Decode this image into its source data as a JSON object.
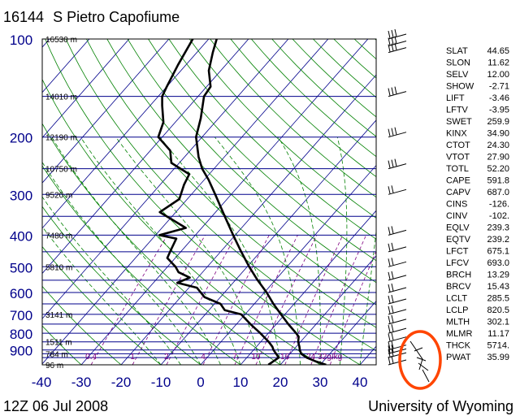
{
  "header": {
    "station": "16144",
    "station_name": "S Pietro Capofiume",
    "time": "12Z 06 Jul 2008",
    "source": "University of Wyoming"
  },
  "colors": {
    "pressure_lines": "#00008b",
    "height_labels": "#000000",
    "isotherms": "#00008b",
    "dry_adiabats": "#008000",
    "moist_adiabats": "#008000",
    "mixing_ratio": "#800080",
    "profile": "#000000",
    "highlight_circle": "#ff4500",
    "pressure_tick_labels": "#00008b",
    "temp_tick_labels": "#00008b"
  },
  "chart_data": {
    "type": "skew-t",
    "title": "16144 S Pietro Capofiume",
    "pressure_levels": [
      100,
      200,
      300,
      400,
      500,
      600,
      700,
      800,
      900
    ],
    "pressure_range": [
      100,
      1000
    ],
    "height_labels": [
      {
        "p": 100,
        "label": "16530 m"
      },
      {
        "p": 150,
        "label": "14010 m"
      },
      {
        "p": 200,
        "label": "12190 m"
      },
      {
        "p": 250,
        "label": "10750 m"
      },
      {
        "p": 300,
        "label": "9520 m"
      },
      {
        "p": 400,
        "label": "7480 m"
      },
      {
        "p": 500,
        "label": "5810 m"
      },
      {
        "p": 700,
        "label": "3141 m"
      },
      {
        "p": 850,
        "label": "1511 m"
      },
      {
        "p": 925,
        "label": "784 m"
      },
      {
        "p": 1000,
        "label": "96 m"
      }
    ],
    "temperature_ticks": [
      -40,
      -30,
      -20,
      -10,
      0,
      10,
      20,
      30,
      40
    ],
    "mixing_ratio_labels": [
      "0.4",
      "1",
      "2",
      "4",
      "7",
      "10",
      "16",
      "24",
      "32g/kg"
    ],
    "temperature_profile": [
      {
        "p": 1000,
        "t": 31.5
      },
      {
        "p": 975,
        "t": 28.0
      },
      {
        "p": 950,
        "t": 25.0
      },
      {
        "p": 925,
        "t": 22.8
      },
      {
        "p": 900,
        "t": 21.6
      },
      {
        "p": 880,
        "t": 20.8
      },
      {
        "p": 850,
        "t": 19.4
      },
      {
        "p": 820,
        "t": 18.4
      },
      {
        "p": 800,
        "t": 17.0
      },
      {
        "p": 750,
        "t": 13.0
      },
      {
        "p": 700,
        "t": 9.0
      },
      {
        "p": 650,
        "t": 4.8
      },
      {
        "p": 600,
        "t": 0.6
      },
      {
        "p": 550,
        "t": -4.4
      },
      {
        "p": 500,
        "t": -9.5
      },
      {
        "p": 450,
        "t": -14.8
      },
      {
        "p": 400,
        "t": -20.5
      },
      {
        "p": 350,
        "t": -26.8
      },
      {
        "p": 300,
        "t": -34.0
      },
      {
        "p": 270,
        "t": -39.0
      },
      {
        "p": 250,
        "t": -43.0
      },
      {
        "p": 230,
        "t": -46.5
      },
      {
        "p": 200,
        "t": -51.5
      },
      {
        "p": 175,
        "t": -54.5
      },
      {
        "p": 150,
        "t": -58.5
      },
      {
        "p": 140,
        "t": -59.0
      },
      {
        "p": 125,
        "t": -63.0
      },
      {
        "p": 110,
        "t": -66.0
      },
      {
        "p": 100,
        "t": -68.0
      }
    ],
    "dewpoint_profile": [
      {
        "p": 1000,
        "t": 17.0
      },
      {
        "p": 975,
        "t": 17.5
      },
      {
        "p": 950,
        "t": 18.0
      },
      {
        "p": 925,
        "t": 16.5
      },
      {
        "p": 900,
        "t": 15.0
      },
      {
        "p": 880,
        "t": 14.0
      },
      {
        "p": 850,
        "t": 12.0
      },
      {
        "p": 800,
        "t": 8.0
      },
      {
        "p": 750,
        "t": 3.5
      },
      {
        "p": 700,
        "t": -1.0
      },
      {
        "p": 680,
        "t": -6.0
      },
      {
        "p": 650,
        "t": -8.5
      },
      {
        "p": 620,
        "t": -14.0
      },
      {
        "p": 580,
        "t": -18.0
      },
      {
        "p": 560,
        "t": -24.0
      },
      {
        "p": 540,
        "t": -22.0
      },
      {
        "p": 520,
        "t": -26.0
      },
      {
        "p": 500,
        "t": -28.0
      },
      {
        "p": 470,
        "t": -32.0
      },
      {
        "p": 440,
        "t": -33.0
      },
      {
        "p": 410,
        "t": -34.0
      },
      {
        "p": 400,
        "t": -39.0
      },
      {
        "p": 380,
        "t": -34.0
      },
      {
        "p": 340,
        "t": -44.0
      },
      {
        "p": 310,
        "t": -42.0
      },
      {
        "p": 280,
        "t": -44.0
      },
      {
        "p": 260,
        "t": -45.0
      },
      {
        "p": 240,
        "t": -52.0
      },
      {
        "p": 220,
        "t": -55.0
      },
      {
        "p": 200,
        "t": -61.0
      },
      {
        "p": 180,
        "t": -63.0
      },
      {
        "p": 160,
        "t": -67.0
      },
      {
        "p": 150,
        "t": -69.0
      },
      {
        "p": 140,
        "t": -70.0
      },
      {
        "p": 120,
        "t": -72.0
      },
      {
        "p": 100,
        "t": -74.0
      }
    ],
    "wind_barb_levels": [
      100,
      105,
      110,
      150,
      200,
      250,
      300,
      400,
      450,
      500,
      550,
      600,
      650,
      700,
      750,
      800,
      850,
      900,
      925,
      950,
      1000
    ]
  },
  "indices": [
    {
      "name": "SLAT",
      "value": "44.65"
    },
    {
      "name": "SLON",
      "value": "11.62"
    },
    {
      "name": "SELV",
      "value": "12.00"
    },
    {
      "name": "SHOW",
      "value": "-2.71"
    },
    {
      "name": "LIFT",
      "value": "-3.46"
    },
    {
      "name": "LFTV",
      "value": "-3.95"
    },
    {
      "name": "SWET",
      "value": "259.9"
    },
    {
      "name": "KINX",
      "value": "34.90"
    },
    {
      "name": "CTOT",
      "value": "24.30"
    },
    {
      "name": "VTOT",
      "value": "27.90"
    },
    {
      "name": "TOTL",
      "value": "52.20"
    },
    {
      "name": "CAPE",
      "value": "591.8"
    },
    {
      "name": "CAPV",
      "value": "687.0"
    },
    {
      "name": "CINS",
      "value": "-126."
    },
    {
      "name": "CINV",
      "value": "-102."
    },
    {
      "name": "EQLV",
      "value": "239.3"
    },
    {
      "name": "EQTV",
      "value": "239.2"
    },
    {
      "name": "LFCT",
      "value": "675.1"
    },
    {
      "name": "LFCV",
      "value": "693.0"
    },
    {
      "name": "BRCH",
      "value": "13.29"
    },
    {
      "name": "BRCV",
      "value": "15.43"
    },
    {
      "name": "LCLT",
      "value": "285.5"
    },
    {
      "name": "LCLP",
      "value": "820.5"
    },
    {
      "name": "MLTH",
      "value": "302.1"
    },
    {
      "name": "MLMR",
      "value": "11.17"
    },
    {
      "name": "THCK",
      "value": "5714."
    },
    {
      "name": "PWAT",
      "value": "35.99"
    }
  ]
}
